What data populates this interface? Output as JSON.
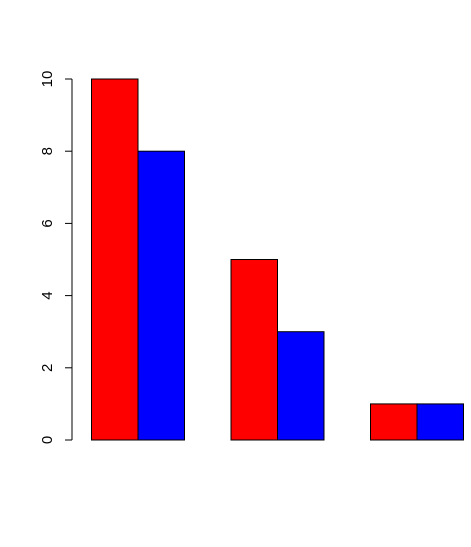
{
  "chart_data": {
    "type": "bar",
    "layout": "grouped",
    "categories": [
      "",
      "",
      ""
    ],
    "series": [
      {
        "color": "#ff0000",
        "values": [
          10,
          5,
          1
        ]
      },
      {
        "color": "#0000ff",
        "values": [
          8,
          3,
          1
        ]
      }
    ],
    "title": "",
    "xlabel": "",
    "ylabel": "",
    "ylim": [
      0,
      10
    ],
    "yticks": [
      "0",
      "2",
      "4",
      "6",
      "8",
      "10"
    ],
    "grid": false,
    "legend": "none"
  },
  "colors": {
    "bar_border": "#000000",
    "axis": "#000000",
    "background": "#ffffff"
  }
}
